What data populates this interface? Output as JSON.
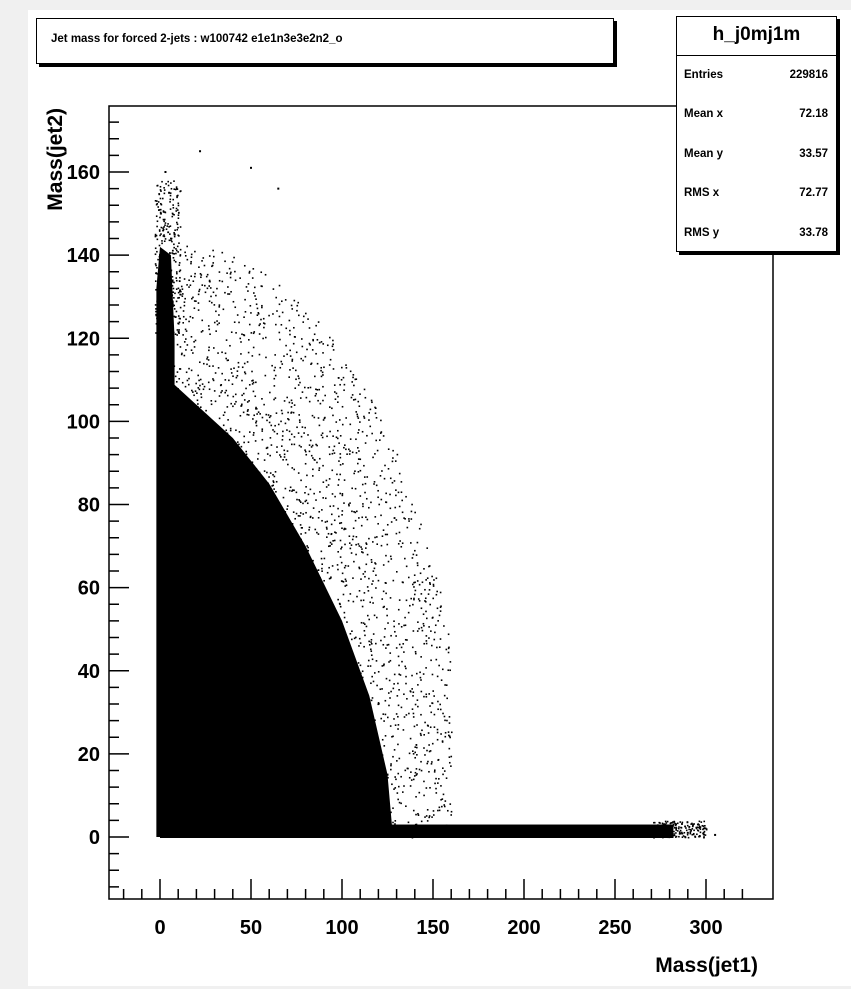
{
  "title": "Jet mass for forced 2-jets : w100742 e1e1n3e3e2n2_o",
  "stats": {
    "name": "h_j0mj1m",
    "rows": [
      {
        "label": "Entries",
        "value": "229816"
      },
      {
        "label": "Mean x",
        "value": "72.18"
      },
      {
        "label": "Mean y",
        "value": "33.57"
      },
      {
        "label": "RMS x",
        "value": "72.77"
      },
      {
        "label": "RMS y",
        "value": "33.78"
      }
    ]
  },
  "chart_data": {
    "type": "scatter",
    "title": "Jet mass for forced 2-jets : w100742 e1e1n3e3e2n2_o",
    "xlabel": "Mass(jet1)",
    "ylabel": "Mass(jet2)",
    "xlim": [
      -27,
      330
    ],
    "ylim": [
      -15,
      175
    ],
    "x_ticks": [
      0,
      50,
      100,
      150,
      200,
      250,
      300
    ],
    "y_ticks": [
      0,
      20,
      40,
      60,
      80,
      100,
      120,
      140,
      160
    ],
    "grid": false,
    "legend": "stats box top-right",
    "series": [
      {
        "points_description_free": true,
        "x": [
          0,
          1,
          2,
          3,
          4,
          5,
          0.5,
          2,
          3.5,
          1.5,
          4,
          6,
          10,
          20,
          30,
          40,
          50,
          60,
          70,
          80,
          90,
          100,
          110,
          120,
          130,
          150,
          170,
          200,
          230,
          260,
          280,
          290,
          305,
          15,
          25,
          35,
          45,
          55,
          65,
          75,
          85,
          95,
          105,
          115,
          125,
          20,
          40,
          60,
          80,
          100,
          22,
          50,
          65,
          3,
          5,
          8
        ],
        "y": [
          140,
          120,
          100,
          80,
          60,
          40,
          150,
          130,
          110,
          20,
          10,
          5,
          0,
          0,
          0,
          0,
          0,
          0,
          0,
          0,
          0,
          0,
          0,
          0,
          0,
          0,
          0,
          0,
          0,
          0,
          0,
          1,
          0.5,
          60,
          70,
          80,
          90,
          85,
          75,
          65,
          55,
          45,
          35,
          25,
          15,
          40,
          50,
          45,
          35,
          25,
          165,
          161,
          156,
          160,
          155,
          145
        ]
      }
    ],
    "dense_regions": [
      {
        "x": [
          -2,
          8
        ],
        "y": [
          0,
          145
        ]
      },
      {
        "x": [
          0,
          282
        ],
        "y": [
          0,
          3
        ]
      },
      {
        "x": [
          5,
          125
        ],
        "y": [
          0,
          110
        ]
      }
    ]
  }
}
